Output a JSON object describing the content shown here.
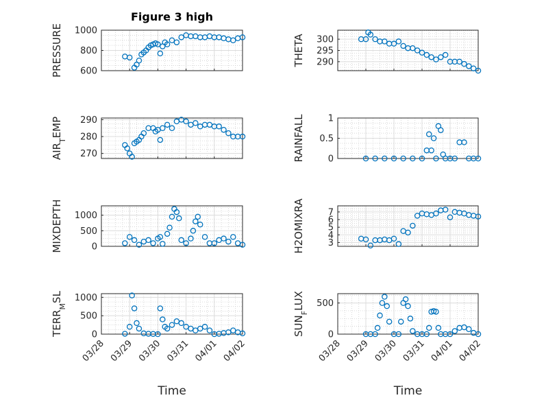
{
  "figure": {
    "title": "Figure 3 high",
    "bottom_xlabel": "Time",
    "x_tick_labels": [
      "03/28",
      "03/29",
      "03/30",
      "03/31",
      "04/01",
      "04/02"
    ],
    "marker_color": "#0072bd",
    "x_axis": {
      "type": "date",
      "range": [
        "03/28",
        "04/02"
      ]
    }
  },
  "chart_data": [
    {
      "type": "scatter",
      "title": "Figure 3 high",
      "ylabel": "PRESSURE",
      "xlabel": "",
      "ylim": [
        600,
        1000
      ],
      "yticks": [
        600,
        800,
        1000
      ],
      "grid": true,
      "x": [
        "03/28 20:00",
        "03/29 00:00",
        "03/29 04:00",
        "03/29 06:00",
        "03/29 08:00",
        "03/29 10:00",
        "03/29 12:00",
        "03/29 14:00",
        "03/29 16:00",
        "03/29 18:00",
        "03/29 20:00",
        "03/29 22:00",
        "03/30 00:00",
        "03/30 02:00",
        "03/30 04:00",
        "03/30 06:00",
        "03/30 08:00",
        "03/30 12:00",
        "03/30 16:00",
        "03/30 20:00",
        "03/31 00:00",
        "03/31 04:00",
        "03/31 08:00",
        "03/31 12:00",
        "03/31 16:00",
        "03/31 20:00",
        "04/01 00:00",
        "04/01 04:00",
        "04/01 08:00",
        "04/01 12:00",
        "04/01 16:00",
        "04/01 20:00",
        "04/02 00:00"
      ],
      "y": [
        740,
        730,
        630,
        660,
        700,
        760,
        780,
        800,
        830,
        850,
        860,
        870,
        860,
        770,
        840,
        880,
        860,
        900,
        880,
        930,
        950,
        940,
        940,
        930,
        930,
        940,
        930,
        930,
        920,
        910,
        900,
        920,
        930
      ],
      "series": [
        {
          "name": ""
        }
      ]
    },
    {
      "type": "scatter",
      "ylabel": "THETA",
      "xlabel": "",
      "ylim": [
        286,
        304
      ],
      "yticks": [
        290,
        295,
        300
      ],
      "grid": true,
      "x": [
        "03/28 20:00",
        "03/29 00:00",
        "03/29 02:00",
        "03/29 04:00",
        "03/29 08:00",
        "03/29 12:00",
        "03/29 16:00",
        "03/29 20:00",
        "03/30 00:00",
        "03/30 04:00",
        "03/30 08:00",
        "03/30 12:00",
        "03/30 16:00",
        "03/30 20:00",
        "03/31 00:00",
        "03/31 04:00",
        "03/31 08:00",
        "03/31 12:00",
        "03/31 16:00",
        "03/31 20:00",
        "04/01 00:00",
        "04/01 04:00",
        "04/01 08:00",
        "04/01 12:00",
        "04/01 16:00",
        "04/01 20:00",
        "04/02 00:00"
      ],
      "y": [
        300,
        300,
        303,
        302,
        300,
        299,
        299,
        298,
        298,
        299,
        297,
        296,
        296,
        295,
        294,
        293,
        292,
        291,
        292,
        293,
        290,
        290,
        290,
        289,
        288,
        287,
        286
      ],
      "series": [
        {
          "name": ""
        }
      ]
    },
    {
      "type": "scatter",
      "ylabel": "AIR_TEMP",
      "xlabel": "",
      "ylim": [
        267,
        291
      ],
      "yticks": [
        270,
        280,
        290
      ],
      "grid": true,
      "x": [
        "03/28 20:00",
        "03/28 22:00",
        "03/29 00:00",
        "03/29 02:00",
        "03/29 04:00",
        "03/29 06:00",
        "03/29 08:00",
        "03/29 10:00",
        "03/29 12:00",
        "03/29 16:00",
        "03/29 20:00",
        "03/29 22:00",
        "03/30 00:00",
        "03/30 02:00",
        "03/30 04:00",
        "03/30 08:00",
        "03/30 12:00",
        "03/30 16:00",
        "03/30 20:00",
        "03/31 00:00",
        "03/31 04:00",
        "03/31 08:00",
        "03/31 12:00",
        "03/31 16:00",
        "03/31 20:00",
        "04/01 00:00",
        "04/01 04:00",
        "04/01 08:00",
        "04/01 12:00",
        "04/01 16:00",
        "04/01 20:00",
        "04/02 00:00"
      ],
      "y": [
        275,
        273,
        270,
        268,
        276,
        277,
        278,
        280,
        282,
        285,
        285,
        283,
        284,
        278,
        285,
        287,
        285,
        289,
        290,
        289,
        287,
        288,
        286,
        287,
        287,
        286,
        286,
        284,
        282,
        280,
        280,
        280
      ],
      "series": [
        {
          "name": ""
        }
      ]
    },
    {
      "type": "scatter",
      "ylabel": "RAINFALL",
      "xlabel": "",
      "ylim": [
        0,
        1
      ],
      "yticks": [
        0,
        0.5,
        1
      ],
      "grid": true,
      "x": [
        "03/29 00:00",
        "03/29 08:00",
        "03/29 16:00",
        "03/30 00:00",
        "03/30 08:00",
        "03/30 16:00",
        "03/31 00:00",
        "03/31 04:00",
        "03/31 06:00",
        "03/31 08:00",
        "03/31 10:00",
        "03/31 12:00",
        "03/31 14:00",
        "03/31 16:00",
        "03/31 18:00",
        "03/31 20:00",
        "04/01 00:00",
        "04/01 04:00",
        "04/01 08:00",
        "04/01 12:00",
        "04/01 16:00",
        "04/01 20:00",
        "04/02 00:00"
      ],
      "y": [
        0,
        0,
        0,
        0,
        0,
        0,
        0,
        0.2,
        0.6,
        0.2,
        0.5,
        0,
        0.8,
        0.7,
        0.1,
        0,
        0,
        0,
        0.4,
        0.4,
        0,
        0,
        0
      ],
      "series": [
        {
          "name": ""
        }
      ]
    },
    {
      "type": "scatter",
      "ylabel": "MIXDEPTH",
      "xlabel": "",
      "ylim": [
        0,
        1300
      ],
      "yticks": [
        0,
        500,
        1000
      ],
      "grid": true,
      "x": [
        "03/28 20:00",
        "03/29 00:00",
        "03/29 04:00",
        "03/29 08:00",
        "03/29 12:00",
        "03/29 16:00",
        "03/29 20:00",
        "03/30 00:00",
        "03/30 02:00",
        "03/30 04:00",
        "03/30 08:00",
        "03/30 10:00",
        "03/30 12:00",
        "03/30 14:00",
        "03/30 16:00",
        "03/30 18:00",
        "03/30 20:00",
        "03/31 00:00",
        "03/31 04:00",
        "03/31 06:00",
        "03/31 08:00",
        "03/31 10:00",
        "03/31 12:00",
        "03/31 16:00",
        "03/31 20:00",
        "04/01 00:00",
        "04/01 04:00",
        "04/01 08:00",
        "04/01 12:00",
        "04/01 16:00",
        "04/01 20:00",
        "04/02 00:00"
      ],
      "y": [
        100,
        300,
        200,
        50,
        150,
        200,
        100,
        250,
        300,
        80,
        400,
        600,
        950,
        1200,
        1100,
        900,
        200,
        100,
        250,
        500,
        800,
        950,
        700,
        300,
        100,
        100,
        200,
        250,
        150,
        300,
        100,
        50
      ],
      "series": [
        {
          "name": ""
        }
      ]
    },
    {
      "type": "scatter",
      "ylabel": "H2OMIXRA",
      "xlabel": "",
      "ylim": [
        2.5,
        7.8
      ],
      "yticks": [
        3,
        4,
        5,
        6,
        7
      ],
      "grid": true,
      "x": [
        "03/28 20:00",
        "03/29 00:00",
        "03/29 04:00",
        "03/29 08:00",
        "03/29 12:00",
        "03/29 16:00",
        "03/29 20:00",
        "03/30 00:00",
        "03/30 04:00",
        "03/30 08:00",
        "03/30 12:00",
        "03/30 16:00",
        "03/30 20:00",
        "03/31 00:00",
        "03/31 04:00",
        "03/31 08:00",
        "03/31 12:00",
        "03/31 16:00",
        "03/31 20:00",
        "04/01 00:00",
        "04/01 04:00",
        "04/01 08:00",
        "04/01 12:00",
        "04/01 16:00",
        "04/01 20:00",
        "04/02 00:00"
      ],
      "y": [
        3.5,
        3.4,
        2.6,
        3.3,
        3.3,
        3.4,
        3.3,
        3.5,
        2.8,
        4.5,
        4.3,
        5.2,
        6.5,
        6.8,
        6.7,
        6.6,
        6.8,
        7.2,
        7.3,
        6.3,
        7.0,
        6.9,
        6.8,
        6.6,
        6.5,
        6.4
      ],
      "series": [
        {
          "name": ""
        }
      ]
    },
    {
      "type": "scatter",
      "ylabel": "TERR_MSL",
      "xlabel": "Time",
      "ylim": [
        0,
        1100
      ],
      "yticks": [
        0,
        500,
        1000
      ],
      "grid": true,
      "x": [
        "03/28 20:00",
        "03/29 00:00",
        "03/29 02:00",
        "03/29 04:00",
        "03/29 06:00",
        "03/29 08:00",
        "03/29 12:00",
        "03/29 16:00",
        "03/29 20:00",
        "03/30 00:00",
        "03/30 02:00",
        "03/30 04:00",
        "03/30 06:00",
        "03/30 08:00",
        "03/30 12:00",
        "03/30 16:00",
        "03/30 20:00",
        "03/31 00:00",
        "03/31 04:00",
        "03/31 08:00",
        "03/31 12:00",
        "03/31 16:00",
        "03/31 20:00",
        "04/01 00:00",
        "04/01 04:00",
        "04/01 08:00",
        "04/01 12:00",
        "04/01 16:00",
        "04/01 20:00",
        "04/02 00:00"
      ],
      "y": [
        10,
        200,
        1050,
        700,
        300,
        150,
        20,
        10,
        5,
        0,
        700,
        400,
        200,
        150,
        250,
        350,
        300,
        200,
        150,
        100,
        150,
        200,
        100,
        0,
        10,
        30,
        50,
        100,
        50,
        20
      ],
      "series": [
        {
          "name": ""
        }
      ]
    },
    {
      "type": "scatter",
      "ylabel": "SUN_FLUX",
      "xlabel": "Time",
      "ylim": [
        0,
        650
      ],
      "yticks": [
        0,
        500
      ],
      "grid": true,
      "x": [
        "03/29 00:00",
        "03/29 04:00",
        "03/29 08:00",
        "03/29 10:00",
        "03/29 12:00",
        "03/29 14:00",
        "03/29 16:00",
        "03/29 18:00",
        "03/29 20:00",
        "03/30 00:00",
        "03/30 04:00",
        "03/30 06:00",
        "03/30 08:00",
        "03/30 10:00",
        "03/30 12:00",
        "03/30 14:00",
        "03/30 16:00",
        "03/30 20:00",
        "03/31 00:00",
        "03/31 04:00",
        "03/31 06:00",
        "03/31 08:00",
        "03/31 10:00",
        "03/31 12:00",
        "03/31 14:00",
        "03/31 16:00",
        "03/31 20:00",
        "04/01 00:00",
        "04/01 04:00",
        "04/01 08:00",
        "04/01 12:00",
        "04/01 16:00",
        "04/01 20:00",
        "04/02 00:00"
      ],
      "y": [
        0,
        0,
        0,
        100,
        300,
        500,
        600,
        450,
        200,
        0,
        0,
        200,
        500,
        560,
        450,
        250,
        50,
        0,
        0,
        0,
        100,
        360,
        370,
        360,
        100,
        0,
        0,
        0,
        50,
        100,
        110,
        80,
        20,
        0
      ],
      "series": [
        {
          "name": ""
        }
      ]
    }
  ]
}
